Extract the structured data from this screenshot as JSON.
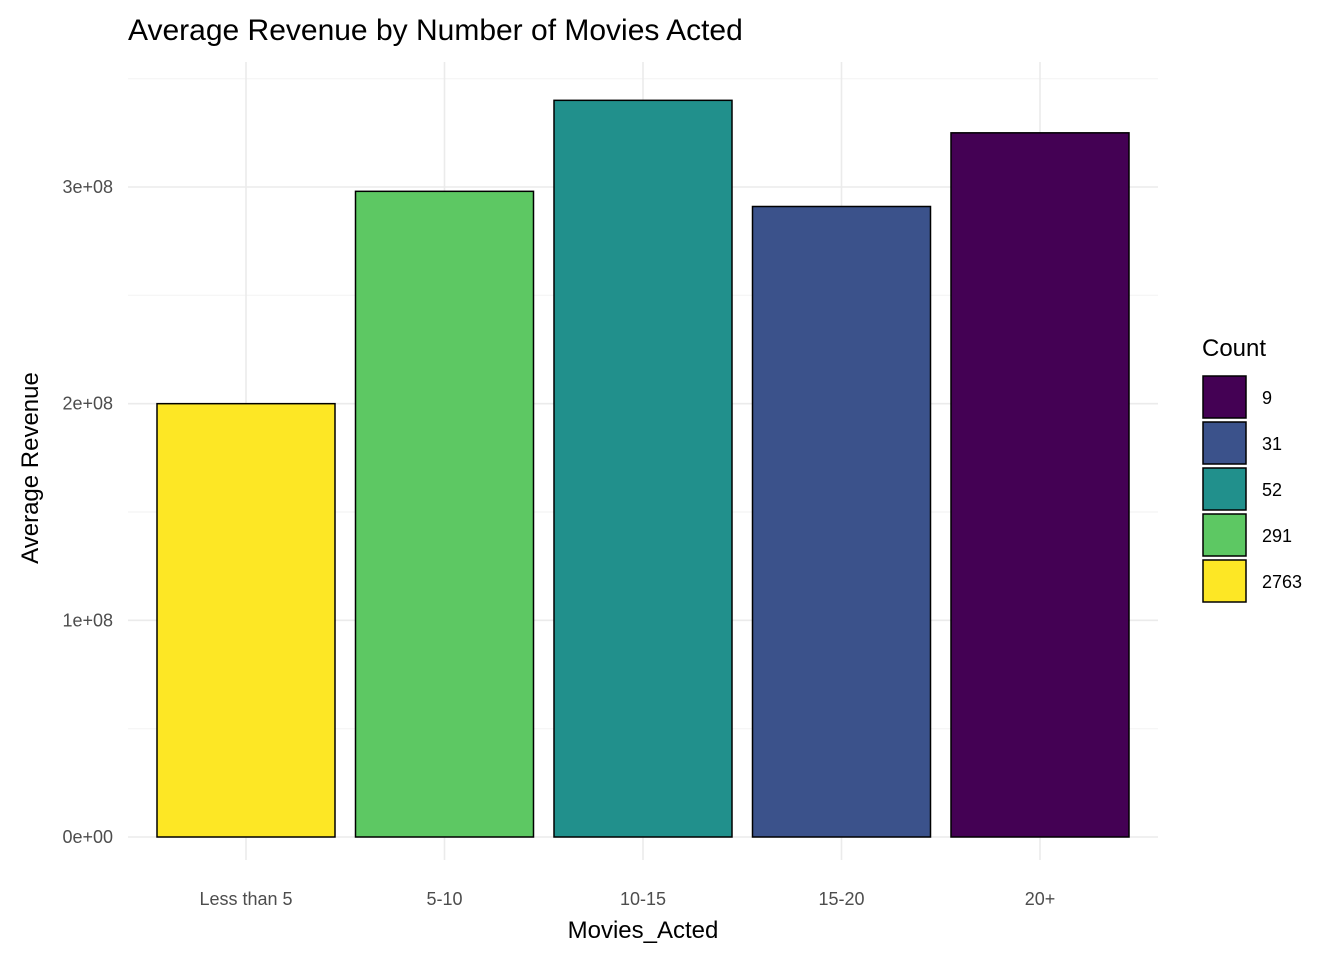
{
  "chart_data": {
    "type": "bar",
    "title": "Average Revenue by Number of Movies Acted",
    "xlabel": "Movies_Acted",
    "ylabel": "Average Revenue",
    "categories": [
      "Less than 5",
      "5-10",
      "10-15",
      "15-20",
      "20+"
    ],
    "values": [
      200000000,
      298000000,
      340000000,
      291000000,
      325000000
    ],
    "counts": [
      2763,
      291,
      52,
      31,
      9
    ],
    "ylim": [
      0,
      350000000
    ],
    "yticks": [
      0,
      100000000,
      200000000,
      300000000
    ],
    "ytick_labels": [
      "0e+00",
      "1e+08",
      "2e+08",
      "3e+08"
    ],
    "grid": true,
    "legend": {
      "title": "Count",
      "placement": "right",
      "entries": [
        {
          "label": "9",
          "color": "#440154"
        },
        {
          "label": "31",
          "color": "#3B528B"
        },
        {
          "label": "52",
          "color": "#21908C"
        },
        {
          "label": "291",
          "color": "#5DC863"
        },
        {
          "label": "2763",
          "color": "#FDE725"
        }
      ]
    },
    "bar_colors": [
      "#FDE725",
      "#5DC863",
      "#21908C",
      "#3B528B",
      "#440154"
    ]
  }
}
